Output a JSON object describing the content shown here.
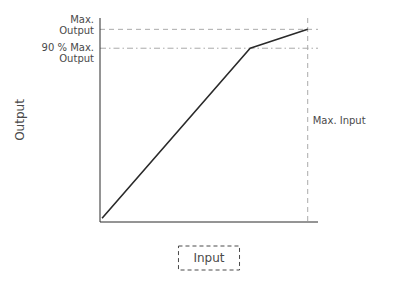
{
  "chart_data": {
    "type": "line",
    "x": [
      0.0,
      0.72,
      1.0
    ],
    "values": [
      0.0,
      0.9,
      1.0
    ],
    "color": "#2a2a2a",
    "xlim": [
      -0.01,
      1.05
    ],
    "ylim": [
      -0.02,
      1.06
    ],
    "xticks": [],
    "yticks": [],
    "tick_labels": false,
    "x_label": "Input",
    "y_label": "Output",
    "annotations": [
      {
        "text": "Max.\nOutput",
        "y": 1.0,
        "line_style": "dashed"
      },
      {
        "text": "90 % Max.\nOutput",
        "y": 0.9,
        "line_style": "dashdot"
      },
      {
        "text": "Max. Input",
        "x": 1.0,
        "line_style": "dashed"
      }
    ]
  }
}
